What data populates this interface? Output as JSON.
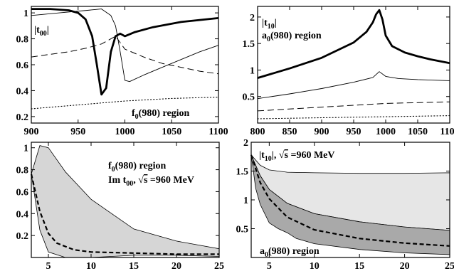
{
  "chart_data": [
    {
      "type": "line",
      "xlim": [
        900,
        1100
      ],
      "ylim": [
        0.15,
        1.05
      ],
      "xticks": [
        900,
        950,
        1000,
        1050,
        1100
      ],
      "yticks": [
        0.2,
        0.4,
        0.6,
        0.8,
        1
      ],
      "xtick_labels": [
        "900",
        "950",
        "1000",
        "1050",
        "1100"
      ],
      "ytick_labels": [
        "0.2",
        "0.4",
        "0.6",
        "0.8",
        "1"
      ],
      "label_main": "|t",
      "label_main_sub": "00",
      "label_main_end": "|",
      "label_region": "f",
      "label_region_sub": "0",
      "label_region_end": "(980) region",
      "series": [
        {
          "style": "thick",
          "x": [
            900,
            920,
            940,
            950,
            958,
            965,
            970,
            975,
            980,
            985,
            990,
            995,
            1000,
            1010,
            1030,
            1060,
            1100
          ],
          "y": [
            1.03,
            1.03,
            1.02,
            1.0,
            0.95,
            0.82,
            0.6,
            0.37,
            0.42,
            0.7,
            0.82,
            0.84,
            0.82,
            0.85,
            0.89,
            0.93,
            0.96
          ]
        },
        {
          "style": "thin",
          "x": [
            900,
            930,
            960,
            975,
            985,
            990,
            995,
            1000,
            1005,
            1020,
            1040,
            1060,
            1080,
            1100
          ],
          "y": [
            0.98,
            1.0,
            1.02,
            1.03,
            0.98,
            0.9,
            0.7,
            0.48,
            0.47,
            0.52,
            0.58,
            0.64,
            0.7,
            0.75
          ]
        },
        {
          "style": "dashed",
          "x": [
            900,
            920,
            940,
            960,
            975,
            985,
            990,
            1000,
            1020,
            1040,
            1060,
            1080,
            1100
          ],
          "y": [
            0.66,
            0.68,
            0.7,
            0.73,
            0.76,
            0.8,
            0.82,
            0.72,
            0.66,
            0.61,
            0.58,
            0.55,
            0.53
          ]
        },
        {
          "style": "dotted",
          "x": [
            900,
            950,
            1000,
            1050,
            1100
          ],
          "y": [
            0.26,
            0.29,
            0.32,
            0.34,
            0.35
          ]
        }
      ]
    },
    {
      "type": "line",
      "xlim": [
        800,
        1100
      ],
      "ylim": [
        0,
        2.2
      ],
      "xticks": [
        800,
        850,
        900,
        950,
        1000,
        1050,
        1100
      ],
      "yticks": [
        0.5,
        1,
        1.5,
        2
      ],
      "xtick_labels": [
        "800",
        "850",
        "900",
        "950",
        "1000",
        "1050",
        "1100"
      ],
      "ytick_labels": [
        "0.5",
        "1",
        "1.5",
        "2"
      ],
      "label_main": "|t",
      "label_main_sub": "10",
      "label_main_end": "|",
      "label_region": "a",
      "label_region_sub": "0",
      "label_region_end": "(980) region",
      "series": [
        {
          "style": "thick",
          "x": [
            800,
            850,
            900,
            950,
            970,
            980,
            985,
            990,
            995,
            1000,
            1010,
            1030,
            1050,
            1070,
            1100
          ],
          "y": [
            0.85,
            1.03,
            1.23,
            1.52,
            1.72,
            1.9,
            2.05,
            2.13,
            1.95,
            1.65,
            1.45,
            1.33,
            1.26,
            1.2,
            1.13
          ]
        },
        {
          "style": "thin",
          "x": [
            800,
            850,
            900,
            950,
            980,
            990,
            1000,
            1020,
            1050,
            1100
          ],
          "y": [
            0.46,
            0.55,
            0.65,
            0.77,
            0.86,
            0.97,
            0.88,
            0.84,
            0.82,
            0.8
          ]
        },
        {
          "style": "dashed",
          "x": [
            800,
            900,
            1000,
            1100
          ],
          "y": [
            0.23,
            0.3,
            0.37,
            0.4
          ]
        },
        {
          "style": "dotted",
          "x": [
            800,
            900,
            1000,
            1100
          ],
          "y": [
            0.08,
            0.1,
            0.12,
            0.14
          ]
        }
      ]
    },
    {
      "type": "area",
      "xlim": [
        3,
        25
      ],
      "ylim": [
        0,
        1.05
      ],
      "xticks": [
        5,
        10,
        15,
        20,
        25
      ],
      "yticks": [
        0.2,
        0.4,
        0.6,
        0.8,
        1
      ],
      "xtick_labels": [
        "5",
        "10",
        "15",
        "20",
        "25"
      ],
      "ytick_labels": [
        "0.2",
        "0.4",
        "0.6",
        "0.8",
        "1"
      ],
      "label_line1_pre": "f",
      "label_line1_sub": "0",
      "label_line1_end": "(980) region",
      "label_line2_pre": "Im t",
      "label_line2_sub": "00",
      "label_line2_mid": ", ",
      "label_line2_sqrt": "√",
      "label_line2_s": "s",
      "label_line2_end": " =960 MeV",
      "bands": [
        {
          "color": "#d6d6d6",
          "upper_x": [
            3,
            4,
            5,
            7,
            10,
            15,
            20,
            25
          ],
          "upper_y": [
            0.76,
            1.02,
            1.0,
            0.78,
            0.53,
            0.26,
            0.15,
            0.08
          ],
          "lower_x": [
            3,
            4,
            5,
            7,
            10,
            15,
            20,
            25
          ],
          "lower_y": [
            0.76,
            0.25,
            0.05,
            0.0,
            0.0,
            0.02,
            0.02,
            0.01
          ]
        }
      ],
      "series": [
        {
          "style": "dashed-thick",
          "x": [
            3,
            4,
            5,
            6,
            8,
            10,
            15,
            20,
            25
          ],
          "y": [
            0.76,
            0.42,
            0.22,
            0.13,
            0.07,
            0.05,
            0.04,
            0.03,
            0.03
          ]
        }
      ]
    },
    {
      "type": "area",
      "xlim": [
        3,
        25
      ],
      "ylim": [
        0,
        2
      ],
      "xticks": [
        5,
        10,
        15,
        20,
        25
      ],
      "yticks": [
        0.5,
        1,
        1.5,
        2
      ],
      "xtick_labels": [
        "5",
        "10",
        "15",
        "20",
        "25"
      ],
      "ytick_labels": [
        "0.5",
        "1",
        "1.5",
        "2"
      ],
      "label_top_pre": "|t",
      "label_top_sub": "10",
      "label_top_mid": "|, ",
      "label_top_sqrt": "√",
      "label_top_s": "s",
      "label_top_end": " =960 MeV",
      "label_bottom_pre": "a",
      "label_bottom_sub": "0",
      "label_bottom_end": "(980) region",
      "bands": [
        {
          "color": "#e6e6e6",
          "upper_x": [
            3,
            4,
            5,
            7,
            10,
            15,
            20,
            25
          ],
          "upper_y": [
            1.78,
            1.6,
            1.52,
            1.48,
            1.47,
            1.46,
            1.46,
            1.47
          ],
          "lower_x": [
            3,
            4,
            5,
            7,
            10,
            15,
            20,
            25
          ],
          "lower_y": [
            1.78,
            1.42,
            1.18,
            0.94,
            0.76,
            0.62,
            0.53,
            0.47
          ]
        },
        {
          "color": "#a9a9a9",
          "upper_x": [
            3,
            4,
            5,
            7,
            10,
            15,
            20,
            25
          ],
          "upper_y": [
            1.78,
            1.42,
            1.18,
            0.94,
            0.76,
            0.62,
            0.53,
            0.47
          ],
          "lower_x": [
            3,
            3.5,
            4,
            5,
            6,
            7,
            8,
            10,
            15,
            20,
            25
          ],
          "lower_y": [
            1.78,
            1.2,
            0.92,
            0.6,
            0.5,
            0.43,
            0.33,
            0.24,
            0.14,
            0.08,
            0.05
          ]
        }
      ],
      "series": [
        {
          "style": "dashed-thick",
          "x": [
            3,
            4,
            5,
            7,
            10,
            15,
            20,
            25
          ],
          "y": [
            1.78,
            1.3,
            1.02,
            0.7,
            0.48,
            0.33,
            0.25,
            0.2
          ]
        }
      ]
    }
  ]
}
